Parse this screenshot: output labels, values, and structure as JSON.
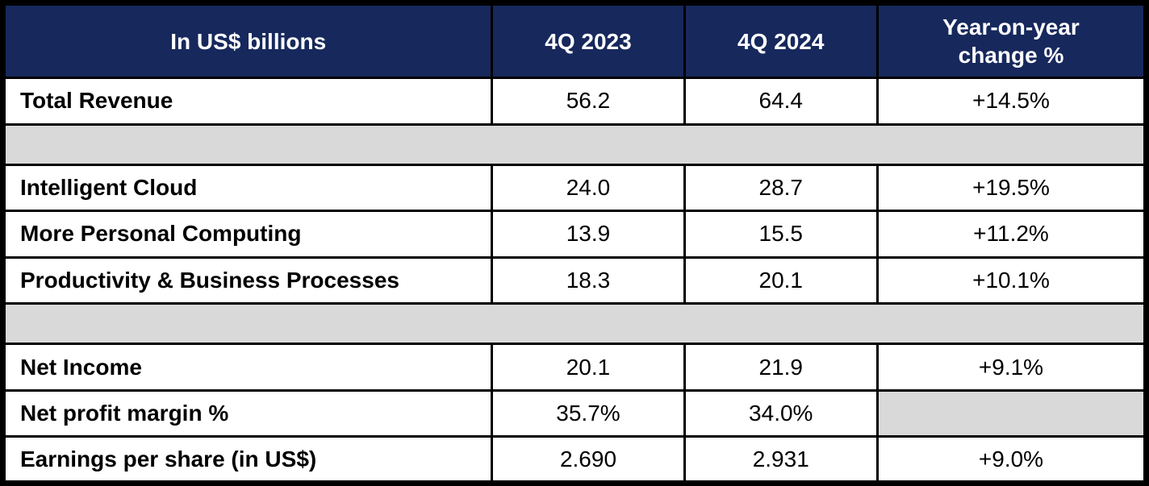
{
  "colors": {
    "header_bg": "#17285C",
    "header_text": "#FFFFFF",
    "spacer_bg": "#D9D9D9",
    "row_bg": "#FFFFFF",
    "border": "#000000",
    "body_text": "#000000"
  },
  "table": {
    "headers": [
      "In US$ billions",
      "4Q 2023",
      "4Q 2024",
      "Year-on-year change %"
    ],
    "rows": [
      {
        "label": "Total Revenue",
        "q4_2023": "56.2",
        "q4_2024": "64.4",
        "yoy": "+14.5%"
      },
      {
        "label": "Intelligent Cloud",
        "q4_2023": "24.0",
        "q4_2024": "28.7",
        "yoy": "+19.5%"
      },
      {
        "label": "More Personal Computing",
        "q4_2023": "13.9",
        "q4_2024": "15.5",
        "yoy": "+11.2%"
      },
      {
        "label": "Productivity & Business Processes",
        "q4_2023": "18.3",
        "q4_2024": "20.1",
        "yoy": "+10.1%"
      },
      {
        "label": "Net Income",
        "q4_2023": "20.1",
        "q4_2024": "21.9",
        "yoy": "+9.1%"
      },
      {
        "label": "Net profit margin %",
        "q4_2023": "35.7%",
        "q4_2024": "34.0%",
        "yoy": ""
      },
      {
        "label": "Earnings per share (in US$)",
        "q4_2023": "2.690",
        "q4_2024": "2.931",
        "yoy": "+9.0%"
      }
    ]
  },
  "chart_data": {
    "type": "table",
    "title": "Quarterly financial results (In US$ billions)",
    "columns": [
      "In US$ billions",
      "4Q 2023",
      "4Q 2024",
      "Year-on-year change %"
    ],
    "rows": [
      [
        "Total Revenue",
        56.2,
        64.4,
        "+14.5%"
      ],
      [
        "Intelligent Cloud",
        24.0,
        28.7,
        "+19.5%"
      ],
      [
        "More Personal Computing",
        13.9,
        15.5,
        "+11.2%"
      ],
      [
        "Productivity & Business Processes",
        18.3,
        20.1,
        "+10.1%"
      ],
      [
        "Net Income",
        20.1,
        21.9,
        "+9.1%"
      ],
      [
        "Net profit margin %",
        "35.7%",
        "34.0%",
        null
      ],
      [
        "Earnings per share (in US$)",
        2.69,
        2.931,
        "+9.0%"
      ]
    ],
    "layout_hints": {
      "spacer_bands_after_rows": [
        0,
        3
      ],
      "empty_cell": {
        "row": "Net profit margin %",
        "column": "Year-on-year change %"
      }
    }
  }
}
